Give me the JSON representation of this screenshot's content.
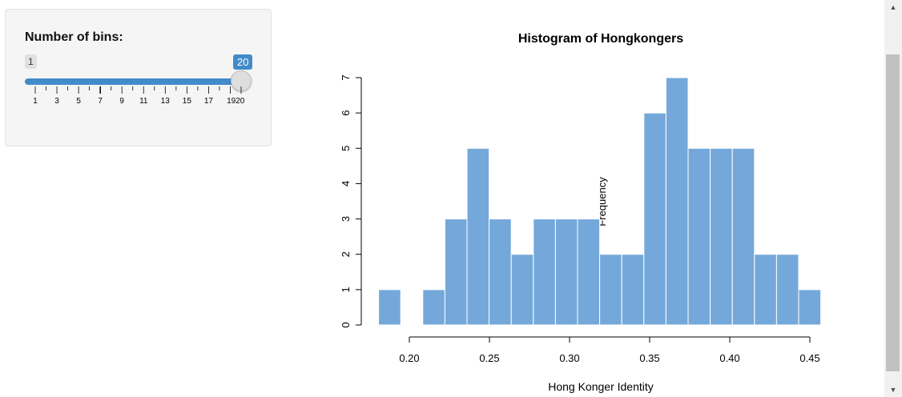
{
  "sidebar": {
    "label": "Number of bins:",
    "slider": {
      "min_label": "1",
      "value_label": "20",
      "value": 20,
      "min": 1,
      "max": 20,
      "tick_labels": [
        "1",
        "3",
        "5",
        "7",
        "9",
        "11",
        "13",
        "15",
        "17",
        "1920"
      ]
    }
  },
  "chart_data": {
    "type": "bar",
    "title": "Histogram of Hongkongers",
    "xlabel": "Hong Konger Identity",
    "ylabel": "Frequency",
    "bin_width": 0.0138,
    "bin_starts": [
      0.1808,
      0.1946,
      0.2084,
      0.2222,
      0.236,
      0.2498,
      0.2636,
      0.2774,
      0.2912,
      0.305,
      0.3188,
      0.3326,
      0.3464,
      0.3602,
      0.374,
      0.3878,
      0.4016,
      0.4154,
      0.4292,
      0.443
    ],
    "values": [
      1,
      0,
      1,
      3,
      5,
      3,
      2,
      3,
      3,
      3,
      2,
      2,
      6,
      7,
      5,
      5,
      5,
      2,
      2,
      1
    ],
    "x_ticks": [
      0.2,
      0.25,
      0.3,
      0.35,
      0.4,
      0.45
    ],
    "x_tick_labels": [
      "0.20",
      "0.25",
      "0.30",
      "0.35",
      "0.40",
      "0.45"
    ],
    "y_ticks": [
      0,
      1,
      2,
      3,
      4,
      5,
      6,
      7
    ],
    "y_tick_labels": [
      "0",
      "1",
      "2",
      "3",
      "4",
      "5",
      "6",
      "7"
    ],
    "xlim": [
      0.2,
      0.45
    ],
    "ylim": [
      0,
      7
    ],
    "bar_color": "#75a8da",
    "bar_border": "#ffffff",
    "grid": false
  },
  "scrollbar": {
    "up_icon": "arrow-up-icon",
    "down_icon": "arrow-down-icon"
  }
}
